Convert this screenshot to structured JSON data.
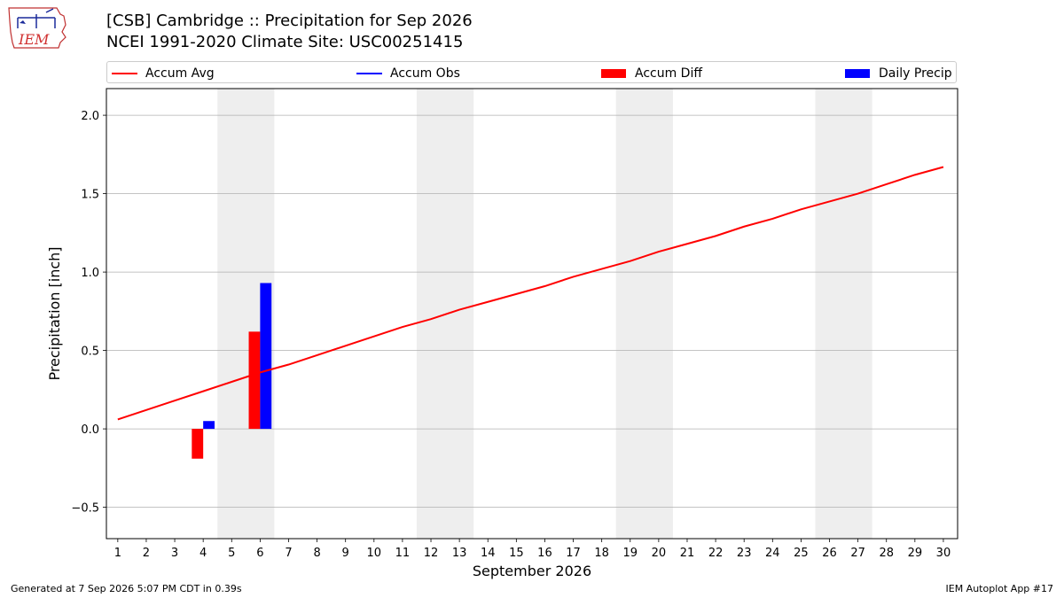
{
  "header": {
    "title_line1": "[CSB] Cambridge :: Precipitation for Sep 2026",
    "title_line2": "NCEI 1991-2020 Climate Site: USC00251415",
    "logo_text": "IEM"
  },
  "legend": {
    "items": [
      {
        "label": "Accum Avg",
        "kind": "line",
        "color": "#ff0000"
      },
      {
        "label": "Accum Obs",
        "kind": "line",
        "color": "#0000ff"
      },
      {
        "label": "Accum Diff",
        "kind": "box",
        "color": "#ff0000"
      },
      {
        "label": "Daily Precip",
        "kind": "box",
        "color": "#0000ff"
      }
    ],
    "placement": "top, above plot"
  },
  "footer": {
    "left": "Generated at 7 Sep 2026 5:07 PM CDT in 0.39s",
    "right": "IEM Autoplot App #17"
  },
  "chart_data": {
    "type": "bar",
    "xlabel": "September 2026",
    "ylabel": "Precipitation [inch]",
    "x": [
      1,
      2,
      3,
      4,
      5,
      6,
      7,
      8,
      9,
      10,
      11,
      12,
      13,
      14,
      15,
      16,
      17,
      18,
      19,
      20,
      21,
      22,
      23,
      24,
      25,
      26,
      27,
      28,
      29,
      30
    ],
    "xlim": [
      0.6,
      30.5
    ],
    "ylim": [
      -0.7,
      2.17
    ],
    "yticks": [
      -0.5,
      0.0,
      0.5,
      1.0,
      1.5,
      2.0
    ],
    "ytick_labels": [
      "−0.5",
      "0.0",
      "0.5",
      "1.0",
      "1.5",
      "2.0"
    ],
    "grid": "horizontal",
    "weekend_shading": [
      [
        4.5,
        6.5
      ],
      [
        11.5,
        13.5
      ],
      [
        18.5,
        20.5
      ],
      [
        25.5,
        27.5
      ]
    ],
    "shading_color": "#eeeeee",
    "series": [
      {
        "name": "Accum Avg",
        "kind": "line",
        "color": "#ff0000",
        "x": [
          1,
          2,
          3,
          4,
          5,
          6,
          7,
          8,
          9,
          10,
          11,
          12,
          13,
          14,
          15,
          16,
          17,
          18,
          19,
          20,
          21,
          22,
          23,
          24,
          25,
          26,
          27,
          28,
          29,
          30
        ],
        "values": [
          0.06,
          0.12,
          0.18,
          0.24,
          0.3,
          0.36,
          0.41,
          0.47,
          0.53,
          0.59,
          0.65,
          0.7,
          0.76,
          0.81,
          0.86,
          0.91,
          0.97,
          1.02,
          1.07,
          1.13,
          1.18,
          1.23,
          1.29,
          1.34,
          1.4,
          1.45,
          1.5,
          1.56,
          1.62,
          1.67
        ]
      },
      {
        "name": "Accum Obs",
        "kind": "line",
        "color": "#0000ff",
        "x": [],
        "values": []
      },
      {
        "name": "Accum Diff",
        "kind": "bar",
        "color": "#ff0000",
        "x": [
          4,
          6
        ],
        "values": [
          -0.19,
          0.62
        ]
      },
      {
        "name": "Daily Precip",
        "kind": "bar",
        "color": "#0000ff",
        "x": [
          4,
          6
        ],
        "values": [
          0.05,
          0.93
        ]
      }
    ]
  }
}
